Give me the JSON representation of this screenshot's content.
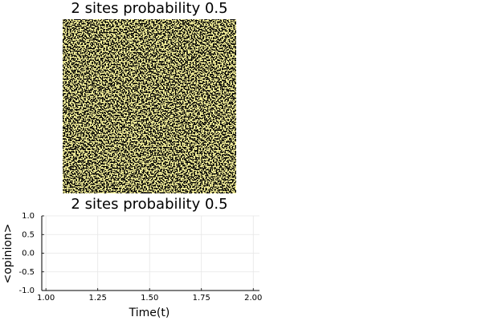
{
  "chart_data": [
    {
      "type": "heatmap",
      "title": "2 sites probability 0.5",
      "colors": [
        "#000000",
        "#fffaa0"
      ]
    },
    {
      "type": "line",
      "title": "2 sites probability 0.5",
      "xlabel": "Time(t)",
      "ylabel": "<opinion>",
      "xlim": [
        0.98,
        2.03
      ],
      "ylim": [
        -1,
        1
      ],
      "xticks": [
        {
          "value": 1,
          "label": "1.00"
        },
        {
          "value": 1.25,
          "label": "1.25"
        },
        {
          "value": 1.5,
          "label": "1.50"
        },
        {
          "value": 1.75,
          "label": "1.75"
        },
        {
          "value": 2,
          "label": "2.00"
        }
      ],
      "yticks": [
        {
          "value": -1,
          "label": "-1.0"
        },
        {
          "value": -0.5,
          "label": "-0.5"
        },
        {
          "value": 0,
          "label": "0.0"
        },
        {
          "value": 0.5,
          "label": "0.5"
        },
        {
          "value": 1,
          "label": "1.0"
        }
      ],
      "grid": true
    }
  ]
}
